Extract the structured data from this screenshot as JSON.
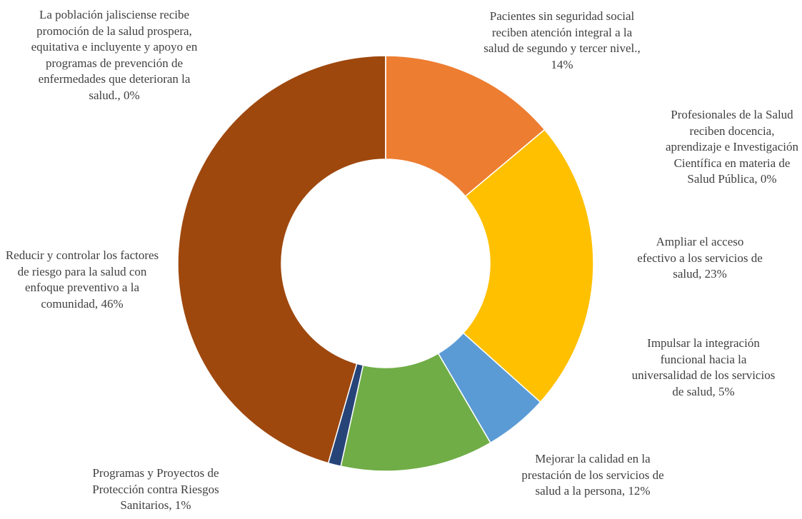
{
  "chart_data": {
    "type": "donut",
    "categories": [
      "Pacientes sin seguridad social reciben atención integral a la salud de segundo y tercer nivel.,",
      "Profesionales de la Salud reciben docencia, aprendizaje e Investigación Científica en materia de Salud Pública,",
      "Ampliar el acceso efectivo a los servicios de salud,",
      "Impulsar la integración funcional hacia la universalidad de los servicios de salud,",
      "Mejorar la calidad en la prestación de los servicios de salud a la persona,",
      "Programas y Proyectos de Protección contra Riesgos Sanitarios,",
      "Reducir y controlar los factores de riesgo para la salud con enfoque preventivo a la comunidad,",
      "La población jalisciense recibe promoción de la salud prospera, equitativa e incluyente y apoyo en programas de prevención de enfermedades que deterioran la salud.,"
    ],
    "values": [
      14,
      0,
      23,
      5,
      12,
      1,
      46,
      0
    ],
    "value_labels": [
      "14%",
      "0%",
      "23%",
      "5%",
      "12%",
      "1%",
      "46%",
      "0%"
    ],
    "colors": [
      "#ED7D31",
      "#A5A5A5",
      "#FFC000",
      "#5B9BD5",
      "#70AD47",
      "#264478",
      "#9E480E",
      "#636363"
    ]
  }
}
